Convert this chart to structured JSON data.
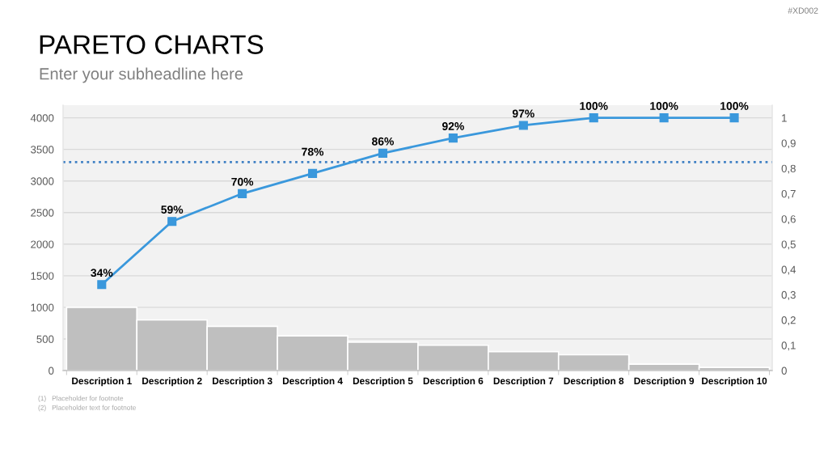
{
  "chart_data": {
    "type": "bar",
    "title": "PARETO CHARTS",
    "subtitle": "Enter your subheadline here",
    "categories": [
      "Description 1",
      "Description 2",
      "Description 3",
      "Description 4",
      "Description 5",
      "Description 6",
      "Description 7",
      "Description 8",
      "Description 9",
      "Description 10"
    ],
    "series": [
      {
        "color": "#bfbfbf",
        "values": [
          1000,
          800,
          700,
          550,
          450,
          400,
          300,
          250,
          100,
          50
        ]
      },
      {
        "type": "line",
        "axis": "y2",
        "color": "#3a98dc",
        "values": [
          0.34,
          0.59,
          0.7,
          0.78,
          0.86,
          0.92,
          0.97,
          1.0,
          1.0,
          1.0
        ],
        "value_labels": [
          "34%",
          "59%",
          "70%",
          "78%",
          "86%",
          "92%",
          "97%",
          "100%",
          "100%",
          "100%"
        ]
      }
    ],
    "marker": "square",
    "ylim": [
      0,
      4200
    ],
    "yticks": [
      0,
      500,
      1000,
      1500,
      2000,
      2500,
      3000,
      3500,
      4000
    ],
    "y2lim": [
      0,
      1.05
    ],
    "y2ticks": [
      0,
      {
        "value": 0.1,
        "label": "0,1"
      },
      {
        "value": 0.2,
        "label": "0,2"
      },
      {
        "value": 0.3,
        "label": "0,3"
      },
      {
        "value": 0.4,
        "label": "0,4"
      },
      {
        "value": 0.5,
        "label": "0,5"
      },
      {
        "value": 0.6,
        "label": "0,6"
      },
      {
        "value": 0.7,
        "label": "0,7"
      },
      {
        "value": 0.8,
        "label": "0,8"
      },
      {
        "value": 0.9,
        "label": "0,9"
      },
      1
    ],
    "ref_lines": [
      {
        "axis": "y",
        "value": 3300,
        "color": "#3f80c4",
        "line_style": "dotted"
      }
    ],
    "grid": "y",
    "annotations": [
      "#XD002",
      "(1)   Placeholder for footnote",
      "(2)   Placeholder text for footnote"
    ]
  }
}
